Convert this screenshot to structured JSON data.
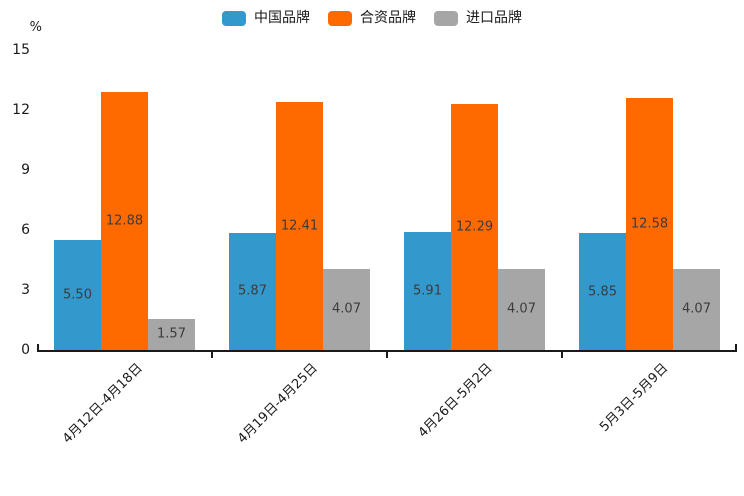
{
  "chart_data": {
    "type": "bar",
    "title": "",
    "unit_label": "%",
    "categories": [
      "4月12日-4月18日",
      "4月19日-4月25日",
      "4月26日-5月2日",
      "5月3日-5月9日"
    ],
    "series": [
      {
        "name": "中国品牌",
        "color": "#3398CC",
        "values": [
          5.5,
          5.87,
          5.91,
          5.85
        ]
      },
      {
        "name": "合资品牌",
        "color": "#FF6A00",
        "values": [
          12.88,
          12.41,
          12.29,
          12.58
        ]
      },
      {
        "name": "进口品牌",
        "color": "#A6A6A6",
        "values": [
          1.57,
          4.07,
          4.07,
          4.07
        ]
      }
    ],
    "value_labels": [
      [
        "5.50",
        "12.88",
        "1.57"
      ],
      [
        "5.87",
        "12.41",
        "4.07"
      ],
      [
        "5.91",
        "12.29",
        "4.07"
      ],
      [
        "5.85",
        "12.58",
        "4.07"
      ]
    ],
    "y_ticks": [
      0,
      3,
      6,
      9,
      12,
      15
    ],
    "ylim": [
      0,
      15
    ],
    "grid": false,
    "legend_position": "top",
    "axis_color": "#1A1A1A",
    "value_label_color": "#3C3C3C"
  }
}
